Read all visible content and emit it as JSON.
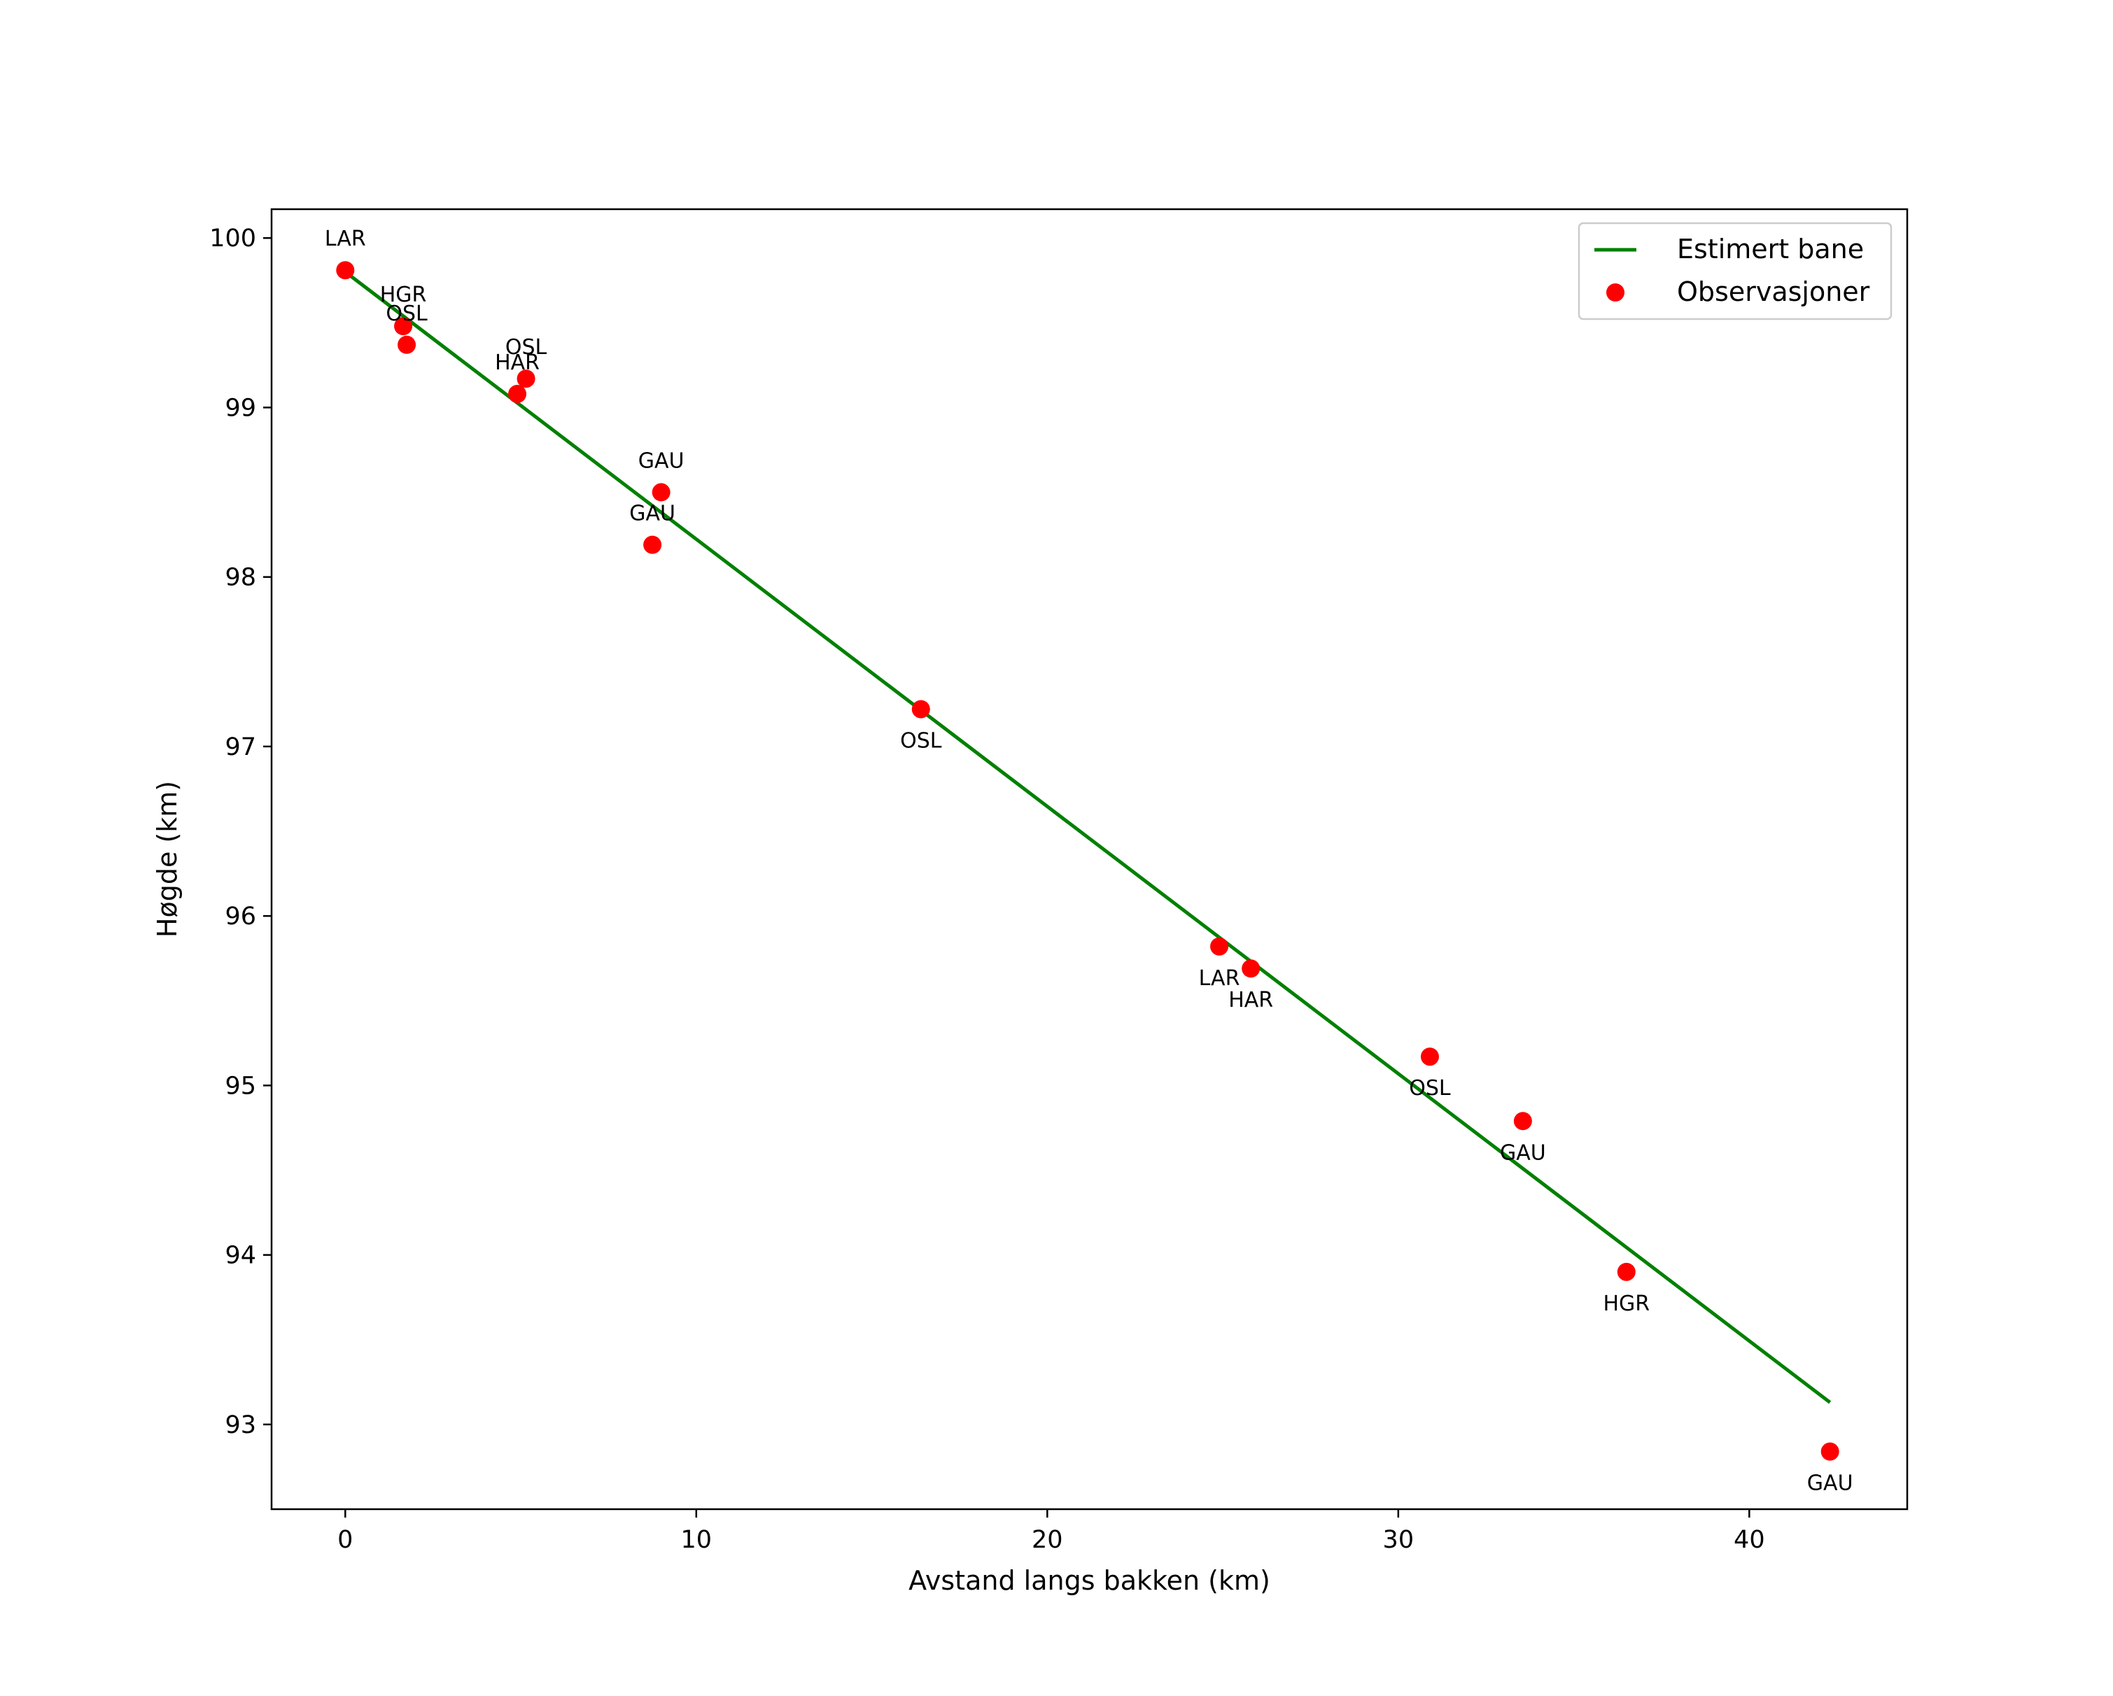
{
  "chart_data": {
    "type": "scatter",
    "title": "",
    "xlabel": "Avstand langs bakken (km)",
    "ylabel": "Høgde (km)",
    "xlim": [
      -2.1,
      44.5
    ],
    "ylim": [
      92.5,
      100.17
    ],
    "xticks": [
      0,
      10,
      20,
      30,
      40
    ],
    "yticks": [
      93,
      94,
      95,
      96,
      97,
      98,
      99,
      100
    ],
    "xtick_labels": [
      "0",
      "10",
      "20",
      "30",
      "40"
    ],
    "ytick_labels": [
      "93",
      "94",
      "95",
      "96",
      "97",
      "98",
      "99",
      "100"
    ],
    "grid": false,
    "legend_position": "top-right",
    "series": [
      {
        "name": "Estimert bane",
        "kind": "line",
        "color": "#008000",
        "x": [
          0.0,
          42.3
        ],
        "y": [
          99.8,
          93.13
        ]
      },
      {
        "name": "Observasjoner",
        "kind": "scatter",
        "color": "#ff0000",
        "points": [
          {
            "x": 0.0,
            "y": 99.81,
            "label": "LAR",
            "label_pos": "above"
          },
          {
            "x": 1.65,
            "y": 99.48,
            "label": "HGR",
            "label_pos": "above"
          },
          {
            "x": 1.75,
            "y": 99.37,
            "label": "OSL",
            "label_pos": "above"
          },
          {
            "x": 5.15,
            "y": 99.17,
            "label": "OSL",
            "label_pos": "above"
          },
          {
            "x": 4.9,
            "y": 99.08,
            "label": "HAR",
            "label_pos": "above"
          },
          {
            "x": 9.0,
            "y": 98.5,
            "label": "GAU",
            "label_pos": "above"
          },
          {
            "x": 8.75,
            "y": 98.19,
            "label": "GAU",
            "label_pos": "above"
          },
          {
            "x": 16.4,
            "y": 97.22,
            "label": "OSL",
            "label_pos": "below"
          },
          {
            "x": 24.9,
            "y": 95.82,
            "label": "LAR",
            "label_pos": "below"
          },
          {
            "x": 25.8,
            "y": 95.69,
            "label": "HAR",
            "label_pos": "below"
          },
          {
            "x": 30.9,
            "y": 95.17,
            "label": "OSL",
            "label_pos": "below"
          },
          {
            "x": 33.55,
            "y": 94.79,
            "label": "GAU",
            "label_pos": "below"
          },
          {
            "x": 36.5,
            "y": 93.9,
            "label": "HGR",
            "label_pos": "below"
          },
          {
            "x": 42.3,
            "y": 92.84,
            "label": "GAU",
            "label_pos": "below"
          }
        ]
      }
    ]
  }
}
